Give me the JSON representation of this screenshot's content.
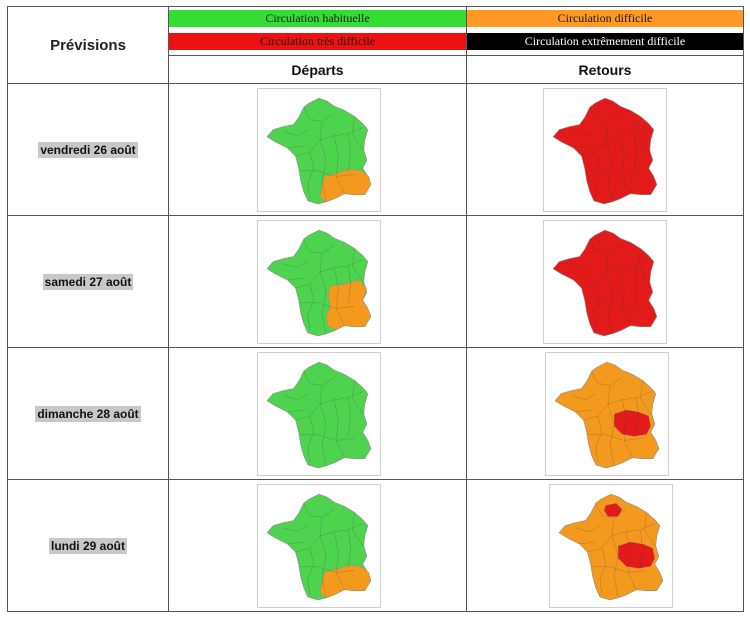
{
  "header": {
    "title": "Prévisions"
  },
  "legend": [
    {
      "label": "Circulation habituelle",
      "bg": "#33dd33",
      "fg": "#1a1a1a"
    },
    {
      "label": "Circulation difficile",
      "bg": "#ff9922",
      "fg": "#1a1a1a"
    },
    {
      "label": "Circulation très difficile",
      "bg": "#ee1111",
      "fg": "#1a1a1a"
    },
    {
      "label": "Circulation extrêmement difficile",
      "bg": "#000000",
      "fg": "#ffffff"
    }
  ],
  "columns": {
    "departs": "Départs",
    "retours": "Retours"
  },
  "colors": {
    "green": "#4ed34e",
    "orange": "#f39a1e",
    "red": "#e21a1a"
  },
  "rows": [
    {
      "day": "vendredi 26 août",
      "departs": {
        "base": "green",
        "zones": [
          "south-orange"
        ]
      },
      "retours": {
        "base": "red",
        "zones": []
      }
    },
    {
      "day": "samedi 27 août",
      "departs": {
        "base": "green",
        "zones": [
          "southeast-orange"
        ]
      },
      "retours": {
        "base": "red",
        "zones": []
      }
    },
    {
      "day": "dimanche 28 août",
      "departs": {
        "base": "green",
        "zones": []
      },
      "retours": {
        "base": "orange",
        "zones": [
          "east-red"
        ]
      }
    },
    {
      "day": "lundi 29 août",
      "departs": {
        "base": "green",
        "zones": [
          "south-orange"
        ]
      },
      "retours": {
        "base": "orange",
        "zones": [
          "paris-red",
          "east-red"
        ]
      }
    }
  ]
}
